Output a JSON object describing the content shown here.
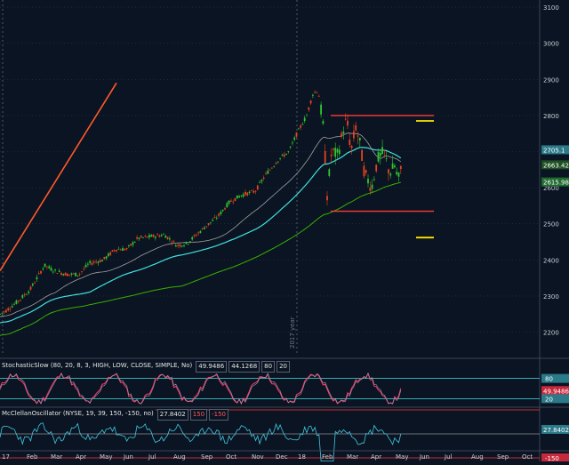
{
  "chart_data": {
    "type": "candlestick",
    "y_axis": {
      "ticks": [
        3100,
        3000,
        2900,
        2800,
        2700,
        2600,
        2500,
        2400,
        2300,
        2200
      ],
      "range": [
        2130,
        3110
      ]
    },
    "x_axis": {
      "labels": [
        "17",
        "Feb",
        "Mar",
        "Apr",
        "May",
        "Jun",
        "Jul",
        "Aug",
        "Sep",
        "Oct",
        "Nov",
        "Dec",
        "18",
        "Feb",
        "Mar",
        "Apr",
        "May",
        "Jun",
        "Jul",
        "Aug",
        "Sep",
        "Oct"
      ]
    },
    "price_tags": [
      {
        "value": "2705.1",
        "bg": "#2a7a8a",
        "y": 2705.1
      },
      {
        "value": "2663.42",
        "bg": "#1f4f24",
        "y": 2663.42
      },
      {
        "value": "2615.98",
        "bg": "#1f6b2f",
        "y": 2615.98
      }
    ],
    "annotation": "2017 year",
    "trendline": {
      "color": "#ff5a2a",
      "from": [
        "17",
        2370
      ],
      "to": [
        "Apr",
        2890
      ]
    },
    "range_lines": [
      {
        "level": 2800,
        "color": "#ff3b3b"
      },
      {
        "level": 2535,
        "color": "#ff3b3b"
      }
    ],
    "target_lines": [
      {
        "level": 2785,
        "color": "#ffe600"
      },
      {
        "level": 2462,
        "color": "#ffe600"
      }
    ],
    "moving_averages": [
      {
        "color": "#40e0e0"
      },
      {
        "color": "#a0a0a0"
      },
      {
        "color": "#38b000"
      }
    ]
  },
  "stochastic": {
    "name": "StochasticSlow (80, 20, 8, 3, HIGH, LOW, CLOSE, SIMPLE, No)",
    "k": "49.9486",
    "d": "44.1268",
    "upper": "80",
    "lower": "20",
    "tag": "49.9486",
    "scale_top": "80",
    "scale_bottom": "20"
  },
  "mcclellan": {
    "name": "McClellanOscillator (NYSE, 19, 39, 150, -150, no)",
    "value": "27.8402",
    "upper": "150",
    "lower": "-150",
    "tag": "27.8402",
    "scale_bottom": "-150"
  },
  "colors": {
    "background": "#0b1422",
    "up_candle": "#2ec82e",
    "down_candle": "#e8431e",
    "grid": "#2a3444"
  }
}
